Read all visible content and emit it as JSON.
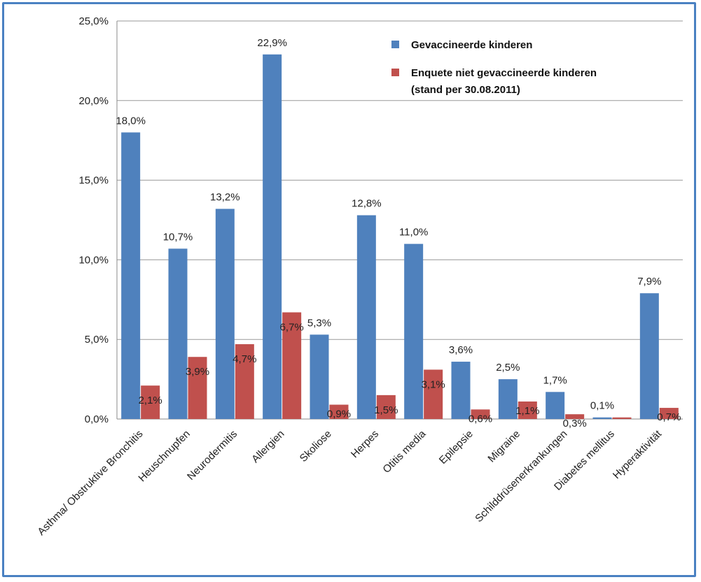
{
  "chart_data": {
    "type": "bar",
    "categories": [
      "Asthma/ Obstruktive Bronchitis",
      "Heuschnupfen",
      "Neurodermitis",
      "Allergien",
      "Skoliose",
      "Herpes",
      "Otitis media",
      "Epilepsie",
      "Migraine",
      "Schilddrüsenerkrankungen",
      "Diabetes mellitus",
      "Hyperaktivität"
    ],
    "series": [
      {
        "name": "Gevaccineerde kinderen",
        "color": "#4f81bd",
        "values": [
          18.0,
          10.7,
          13.2,
          22.9,
          5.3,
          12.8,
          11.0,
          3.6,
          2.5,
          1.7,
          0.1,
          7.9
        ],
        "labels": [
          "18,0%",
          "10,7%",
          "13,2%",
          "22,9%",
          "5,3%",
          "12,8%",
          "11,0%",
          "3,6%",
          "2,5%",
          "1,7%",
          "0,1%",
          "7,9%"
        ]
      },
      {
        "name": "Enquete niet gevaccineerde kinderen",
        "name_line2": "(stand per 30.08.2011)",
        "color": "#c0504d",
        "values": [
          2.1,
          3.9,
          4.7,
          6.7,
          0.9,
          1.5,
          3.1,
          0.6,
          1.1,
          0.3,
          0.1,
          0.7
        ],
        "labels": [
          "2,1%",
          "3,9%",
          "4,7%",
          "6,7%",
          "0,9%",
          "1,5%",
          "3,1%",
          "0,6%",
          "1,1%",
          "0,3%",
          "",
          "0,7%"
        ]
      }
    ],
    "yticks": [
      "0,0%",
      "5,0%",
      "10,0%",
      "15,0%",
      "20,0%",
      "25,0%"
    ],
    "ylim": [
      0,
      25
    ],
    "grid": true,
    "legend_position": "top-right"
  }
}
